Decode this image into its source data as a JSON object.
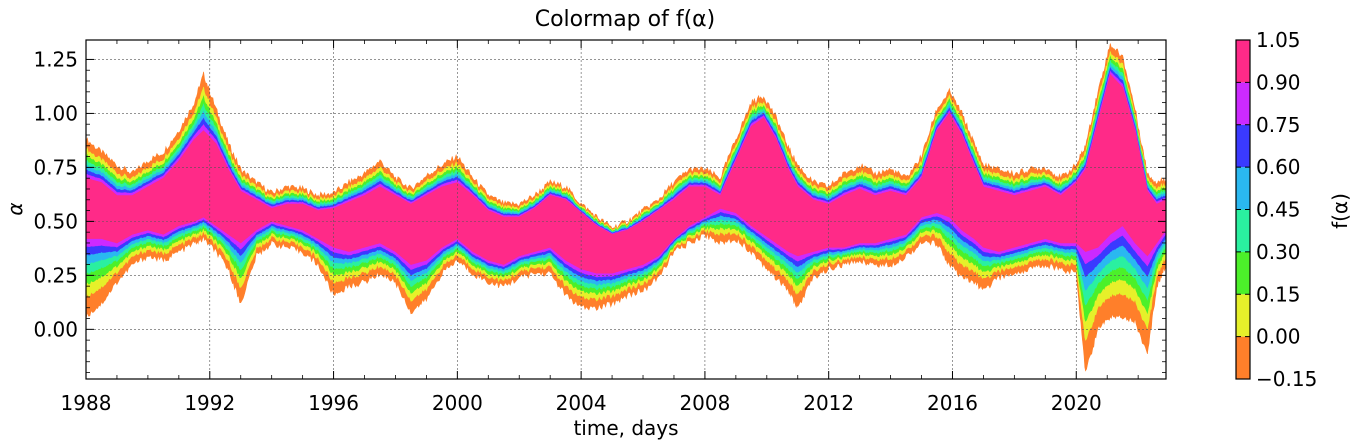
{
  "chart_data": {
    "type": "heatmap",
    "title": "Colormap of f(α)",
    "xlabel": "time, days",
    "ylabel": "α",
    "colorbar_label": "f(α)",
    "xlim": [
      1988.0,
      2022.9
    ],
    "ylim": [
      -0.23,
      1.34
    ],
    "x_ticks": [
      1988,
      1992,
      1996,
      2000,
      2004,
      2008,
      2012,
      2016,
      2020
    ],
    "y_ticks": [
      0.0,
      0.25,
      0.5,
      0.75,
      1.0,
      1.25
    ],
    "y_tick_labels": [
      "0.00",
      "0.25",
      "0.50",
      "0.75",
      "1.00",
      "1.25"
    ],
    "grid": true,
    "colorbar": {
      "levels": [
        -0.15,
        0.0,
        0.15,
        0.3,
        0.45,
        0.6,
        0.75,
        0.9,
        1.05
      ],
      "tick_labels": [
        "−0.15",
        "0.00",
        "0.15",
        "0.30",
        "0.45",
        "0.60",
        "0.75",
        "0.90",
        "1.05"
      ],
      "colors": [
        "#ff7f2a",
        "#e6f02a",
        "#4cf02a",
        "#2af0a0",
        "#2ab8f0",
        "#3a3aff",
        "#cc2aff",
        "#ff2a88"
      ]
    },
    "bands": {
      "x": [
        1988.0,
        1988.5,
        1989.0,
        1989.5,
        1990.0,
        1990.5,
        1991.0,
        1991.5,
        1991.8,
        1992.2,
        1992.6,
        1993.0,
        1993.5,
        1994.0,
        1994.5,
        1995.0,
        1995.5,
        1996.0,
        1996.5,
        1997.0,
        1997.5,
        1998.0,
        1998.5,
        1999.0,
        1999.5,
        2000.0,
        2000.5,
        2001.0,
        2001.5,
        2002.0,
        2002.5,
        2003.0,
        2003.5,
        2004.0,
        2004.5,
        2005.0,
        2005.5,
        2006.0,
        2006.5,
        2007.0,
        2007.5,
        2008.0,
        2008.5,
        2009.0,
        2009.5,
        2009.9,
        2010.3,
        2010.7,
        2011.0,
        2011.5,
        2012.0,
        2012.5,
        2013.0,
        2013.5,
        2014.0,
        2014.5,
        2015.0,
        2015.5,
        2015.9,
        2016.3,
        2016.7,
        2017.0,
        2017.5,
        2018.0,
        2018.5,
        2019.0,
        2019.5,
        2020.0,
        2020.3,
        2020.7,
        2021.1,
        2021.5,
        2021.9,
        2022.3,
        2022.6,
        2022.9
      ],
      "top_outer": [
        0.88,
        0.82,
        0.76,
        0.72,
        0.78,
        0.82,
        0.92,
        1.05,
        1.18,
        1.02,
        0.86,
        0.74,
        0.68,
        0.63,
        0.66,
        0.65,
        0.62,
        0.63,
        0.68,
        0.72,
        0.78,
        0.7,
        0.65,
        0.71,
        0.76,
        0.8,
        0.7,
        0.62,
        0.58,
        0.58,
        0.62,
        0.68,
        0.66,
        0.58,
        0.52,
        0.47,
        0.5,
        0.55,
        0.6,
        0.68,
        0.74,
        0.74,
        0.7,
        0.88,
        1.05,
        1.08,
        0.98,
        0.84,
        0.76,
        0.68,
        0.66,
        0.72,
        0.76,
        0.72,
        0.74,
        0.7,
        0.8,
        1.02,
        1.1,
        1.0,
        0.86,
        0.76,
        0.74,
        0.72,
        0.74,
        0.75,
        0.7,
        0.76,
        0.85,
        1.1,
        1.32,
        1.26,
        1.02,
        0.72,
        0.68,
        0.7
      ],
      "top_inner": [
        0.7,
        0.68,
        0.62,
        0.62,
        0.66,
        0.7,
        0.78,
        0.88,
        0.92,
        0.86,
        0.74,
        0.64,
        0.6,
        0.56,
        0.58,
        0.58,
        0.55,
        0.56,
        0.59,
        0.62,
        0.66,
        0.62,
        0.58,
        0.62,
        0.66,
        0.68,
        0.62,
        0.55,
        0.52,
        0.52,
        0.56,
        0.62,
        0.6,
        0.54,
        0.48,
        0.44,
        0.46,
        0.5,
        0.55,
        0.6,
        0.66,
        0.66,
        0.62,
        0.78,
        0.94,
        0.98,
        0.88,
        0.74,
        0.66,
        0.6,
        0.58,
        0.62,
        0.65,
        0.62,
        0.64,
        0.62,
        0.7,
        0.92,
        1.0,
        0.9,
        0.76,
        0.66,
        0.64,
        0.62,
        0.64,
        0.66,
        0.62,
        0.68,
        0.74,
        0.96,
        1.18,
        1.12,
        0.92,
        0.64,
        0.58,
        0.6
      ],
      "bot_inner": [
        0.42,
        0.42,
        0.4,
        0.44,
        0.46,
        0.44,
        0.48,
        0.5,
        0.52,
        0.48,
        0.44,
        0.4,
        0.46,
        0.5,
        0.48,
        0.46,
        0.42,
        0.38,
        0.36,
        0.38,
        0.4,
        0.36,
        0.3,
        0.32,
        0.38,
        0.42,
        0.36,
        0.32,
        0.3,
        0.34,
        0.36,
        0.38,
        0.32,
        0.28,
        0.26,
        0.26,
        0.28,
        0.3,
        0.34,
        0.42,
        0.48,
        0.52,
        0.56,
        0.54,
        0.48,
        0.44,
        0.4,
        0.36,
        0.34,
        0.36,
        0.38,
        0.38,
        0.4,
        0.4,
        0.42,
        0.44,
        0.52,
        0.54,
        0.52,
        0.46,
        0.42,
        0.38,
        0.36,
        0.38,
        0.4,
        0.42,
        0.4,
        0.4,
        0.36,
        0.38,
        0.44,
        0.48,
        0.4,
        0.34,
        0.4,
        0.46
      ],
      "bot_outer": [
        0.06,
        0.12,
        0.22,
        0.3,
        0.34,
        0.32,
        0.36,
        0.4,
        0.42,
        0.36,
        0.28,
        0.12,
        0.34,
        0.4,
        0.38,
        0.36,
        0.3,
        0.16,
        0.2,
        0.22,
        0.26,
        0.22,
        0.08,
        0.14,
        0.26,
        0.32,
        0.26,
        0.22,
        0.2,
        0.24,
        0.26,
        0.26,
        0.16,
        0.1,
        0.1,
        0.12,
        0.16,
        0.18,
        0.24,
        0.36,
        0.4,
        0.44,
        0.4,
        0.42,
        0.36,
        0.3,
        0.24,
        0.18,
        0.1,
        0.24,
        0.28,
        0.3,
        0.32,
        0.3,
        0.3,
        0.34,
        0.4,
        0.4,
        0.3,
        0.24,
        0.22,
        0.18,
        0.24,
        0.26,
        0.28,
        0.3,
        0.28,
        0.26,
        -0.2,
        0.0,
        0.06,
        0.06,
        0.04,
        -0.12,
        0.2,
        0.3
      ]
    }
  }
}
